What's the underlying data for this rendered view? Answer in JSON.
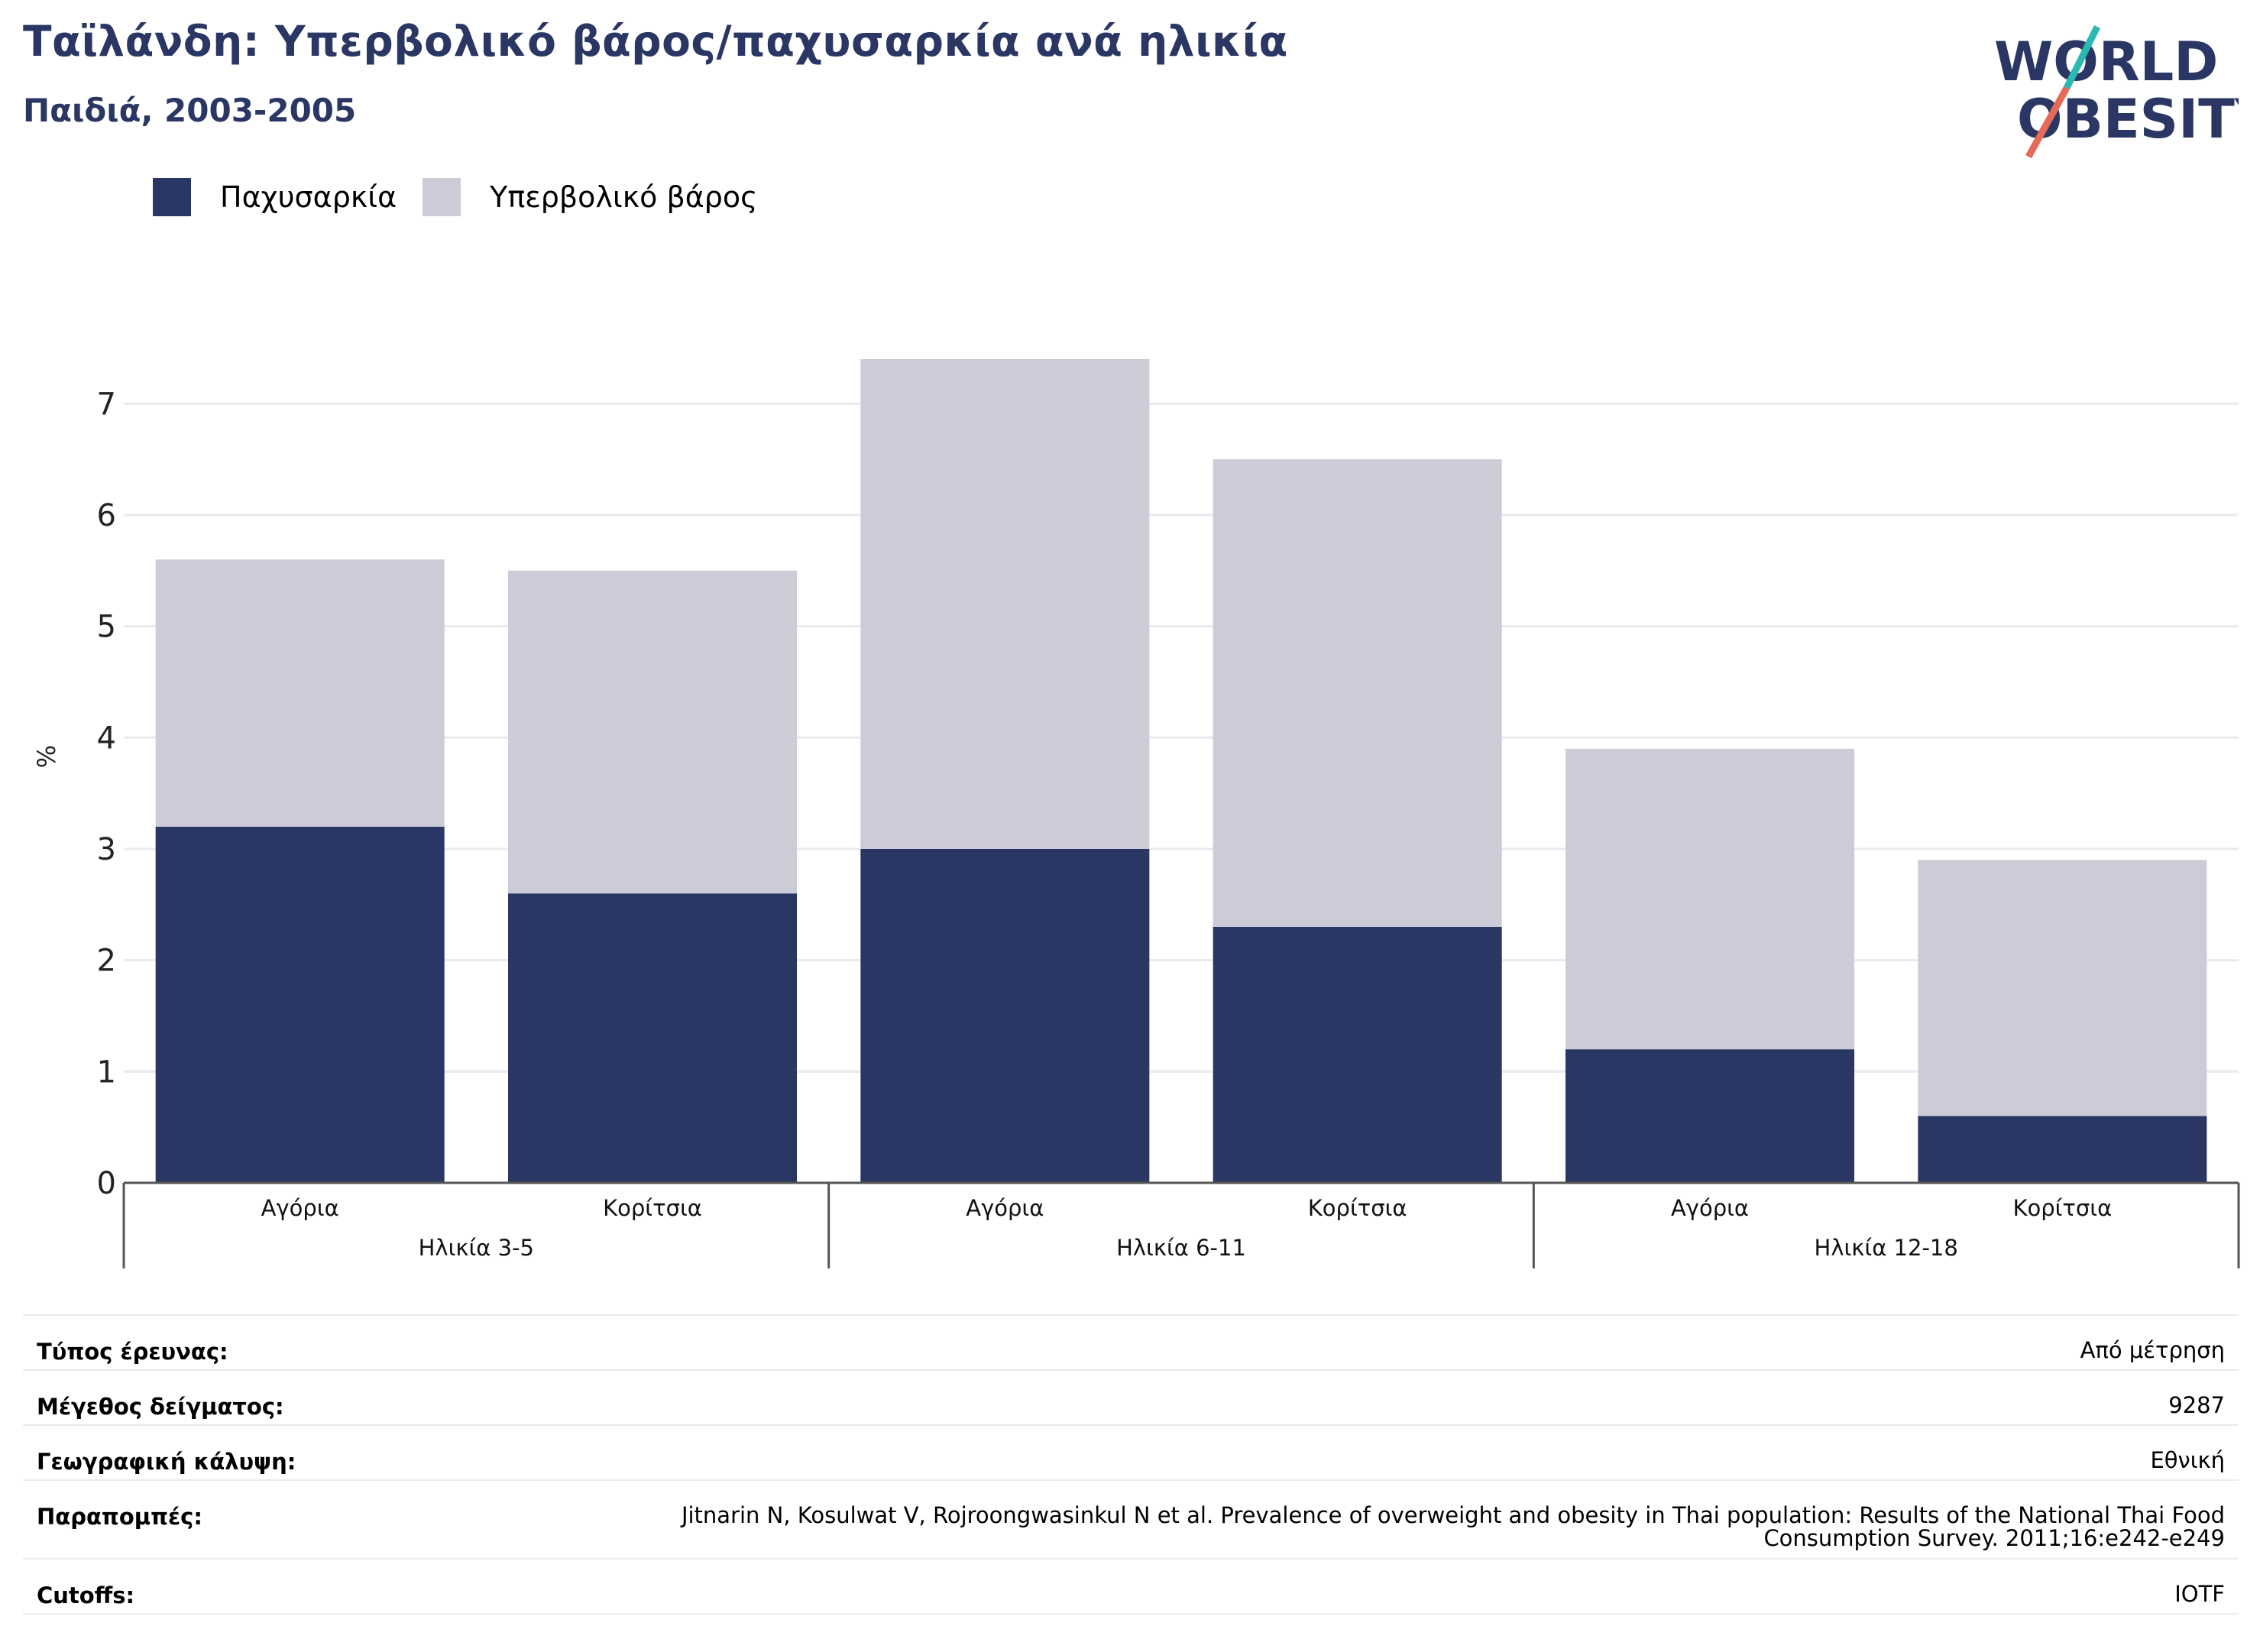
{
  "header": {
    "title": "Ταϊλάνδη: Υπερβολικό βάρος/παχυσαρκία ανά ηλικία",
    "subtitle": "Παιδιά, 2003-2005"
  },
  "logo": {
    "line1": "WORLD",
    "line2": "OBESITY"
  },
  "colors": {
    "obesity": "#2a3663",
    "overweight": "#cbccd8",
    "grid": "#e8eaf0",
    "axis": "#555555"
  },
  "chart_data": {
    "type": "bar",
    "stacked": true,
    "ylabel": "%",
    "ylim": [
      0,
      7.4
    ],
    "yticks": [
      0,
      1,
      2,
      3,
      4,
      5,
      6,
      7
    ],
    "grid": true,
    "legend_position": "top-left",
    "categories": [
      "Αγόρια",
      "Κορίτσια",
      "Αγόρια",
      "Κορίτσια",
      "Αγόρια",
      "Κορίτσια"
    ],
    "groups": [
      {
        "label": "Ηλικία 3-5",
        "span": 2
      },
      {
        "label": "Ηλικία 6-11",
        "span": 2
      },
      {
        "label": "Ηλικία 12-18",
        "span": 2
      }
    ],
    "series": [
      {
        "name": "Παχυσαρκία",
        "values": [
          3.2,
          2.6,
          3.0,
          2.3,
          1.2,
          0.6
        ]
      },
      {
        "name": "Υπερβολικό βάρος",
        "values": [
          2.4,
          2.9,
          4.4,
          4.2,
          2.7,
          2.3
        ]
      }
    ]
  },
  "meta": [
    {
      "key": "Τύπος έρευνας:",
      "value": [
        "Από μέτρηση"
      ]
    },
    {
      "key": "Μέγεθος δείγματος:",
      "value": [
        "9287"
      ]
    },
    {
      "key": "Γεωγραφική κάλυψη:",
      "value": [
        "Εθνική"
      ]
    },
    {
      "key": "Παραπομπές:",
      "value": [
        "Jitnarin N, Kosulwat V, Rojroongwasinkul N et al. Prevalence of overweight and obesity in Thai population: Results of the National Thai Food",
        "Consumption Survey. 2011;16:e242-e249"
      ]
    },
    {
      "key": "Cutoffs:",
      "value": [
        "IOTF"
      ]
    }
  ]
}
